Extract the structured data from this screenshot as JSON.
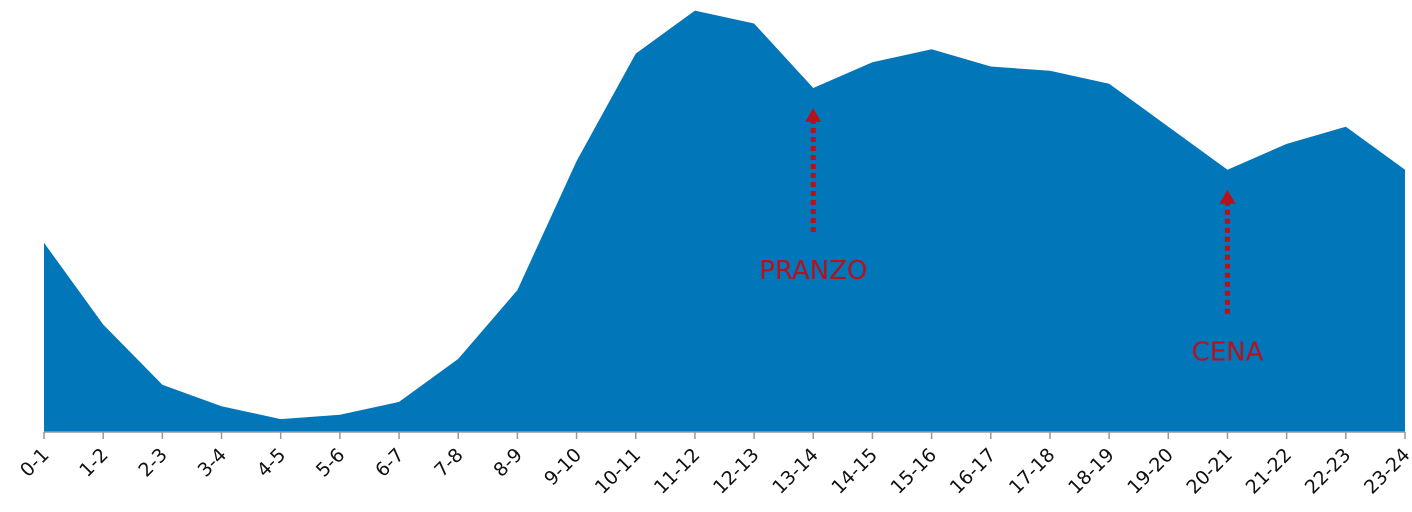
{
  "chart_data": {
    "type": "area",
    "categories": [
      "0-1",
      "1-2",
      "2-3",
      "3-4",
      "4-5",
      "5-6",
      "6-7",
      "7-8",
      "8-9",
      "9-10",
      "10-11",
      "11-12",
      "12-13",
      "13-14",
      "14-15",
      "15-16",
      "16-17",
      "17-18",
      "18-19",
      "19-20",
      "20-21",
      "21-22",
      "22-23",
      "23-24"
    ],
    "values": [
      44,
      25,
      11,
      6,
      3,
      4,
      7,
      17,
      33,
      63,
      88,
      98,
      95,
      80,
      86,
      89,
      85,
      84,
      81,
      71,
      61,
      67,
      71,
      61
    ],
    "color": "#0177ba",
    "ylim": [
      0,
      100
    ],
    "annotations": [
      {
        "text": "PRANZO",
        "category": "13-14",
        "color": "#b5121b"
      },
      {
        "text": "CENA",
        "category": "20-21",
        "color": "#b5121b"
      }
    ]
  }
}
